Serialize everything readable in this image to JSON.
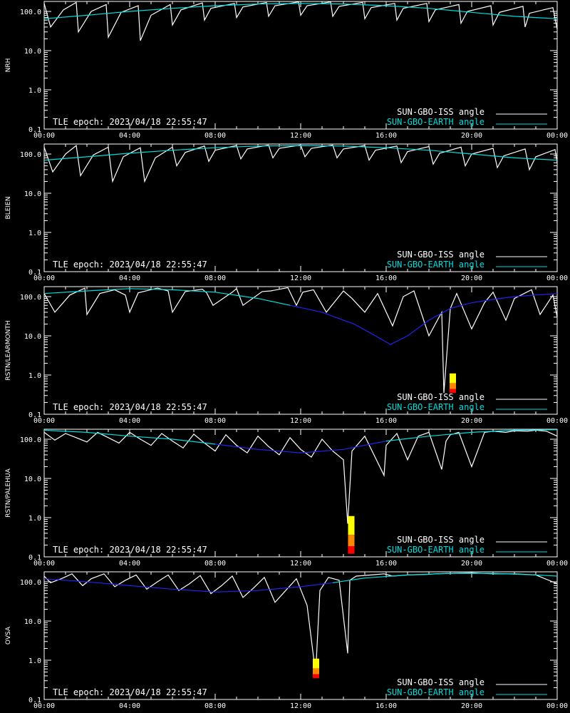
{
  "colors": {
    "background": "#000000",
    "axes": "#ffffff",
    "iss_series": "#ffffff",
    "earth_series": "#00dddd",
    "earth_low_series": "#2222ee",
    "intensity_high": "#ffff00",
    "intensity_mid": "#ff8800",
    "intensity_low": "#ff0000"
  },
  "common": {
    "epoch_text": "TLE epoch: 2023/04/18 22:55:47",
    "legend": [
      {
        "label": "SUN-GBO-ISS angle",
        "color": "#ffffff"
      },
      {
        "label": "SUN-GBO-EARTH angle",
        "color": "#00dddd"
      }
    ],
    "x_ticks": [
      "00:00",
      "04:00",
      "08:00",
      "12:00",
      "16:00",
      "20:00",
      "00:00"
    ],
    "y_ticks": [
      "0.1",
      "1.0",
      "10.0",
      "100.0"
    ]
  },
  "chart_data": [
    {
      "type": "line",
      "ylabel": "NRH",
      "yscale": "log",
      "ylim": [
        0.1,
        180
      ],
      "xlim_hours": [
        0,
        24
      ],
      "series": [
        {
          "name": "SUN-GBO-ISS angle",
          "color": "#ffffff",
          "x": [
            0.0,
            0.3,
            0.9,
            1.5,
            1.6,
            2.2,
            2.9,
            3.0,
            3.6,
            4.4,
            4.5,
            5.0,
            5.9,
            6.0,
            6.4,
            7.4,
            7.5,
            7.8,
            8.9,
            9.0,
            9.3,
            10.4,
            10.5,
            10.8,
            11.9,
            12.0,
            12.3,
            13.4,
            13.5,
            13.8,
            14.9,
            15.0,
            15.3,
            16.4,
            16.5,
            16.8,
            17.9,
            18.0,
            18.3,
            19.4,
            19.5,
            19.8,
            20.9,
            21.0,
            21.3,
            22.4,
            22.5,
            22.7,
            23.8,
            24.0
          ],
          "y": [
            160,
            40,
            110,
            170,
            30,
            100,
            150,
            22,
            95,
            140,
            18,
            80,
            150,
            45,
            110,
            165,
            60,
            120,
            160,
            70,
            130,
            170,
            75,
            140,
            175,
            80,
            140,
            175,
            75,
            135,
            170,
            65,
            125,
            160,
            60,
            120,
            160,
            55,
            110,
            150,
            50,
            100,
            140,
            45,
            95,
            135,
            40,
            90,
            125,
            35
          ]
        },
        {
          "name": "SUN-GBO-EARTH angle",
          "color": "#00dddd",
          "x": [
            0,
            2,
            4,
            6,
            8,
            10,
            12,
            14,
            16,
            18,
            20,
            22,
            24
          ],
          "y": [
            65,
            80,
            100,
            120,
            140,
            155,
            160,
            155,
            140,
            120,
            95,
            75,
            65
          ]
        }
      ]
    },
    {
      "type": "line",
      "ylabel": "BLEIEN",
      "yscale": "log",
      "ylim": [
        0.1,
        180
      ],
      "xlim_hours": [
        0,
        24
      ],
      "series": [
        {
          "name": "SUN-GBO-ISS angle",
          "color": "#ffffff",
          "x": [
            0.0,
            0.4,
            1.0,
            1.5,
            1.7,
            2.3,
            3.0,
            3.2,
            3.7,
            4.5,
            4.7,
            5.2,
            6.0,
            6.2,
            6.6,
            7.5,
            7.7,
            8.0,
            9.0,
            9.2,
            9.5,
            10.5,
            10.7,
            11.0,
            12.0,
            12.2,
            12.5,
            13.5,
            13.7,
            14.0,
            15.0,
            15.2,
            15.5,
            16.5,
            16.7,
            17.0,
            18.0,
            18.2,
            18.5,
            19.5,
            19.7,
            20.0,
            21.0,
            21.2,
            21.5,
            22.5,
            22.7,
            23.0,
            23.9,
            24.0
          ],
          "y": [
            150,
            35,
            100,
            165,
            28,
            95,
            150,
            20,
            85,
            145,
            20,
            80,
            150,
            50,
            110,
            160,
            65,
            125,
            165,
            75,
            135,
            170,
            80,
            140,
            170,
            85,
            140,
            170,
            80,
            135,
            165,
            70,
            125,
            160,
            60,
            115,
            155,
            55,
            105,
            150,
            50,
            100,
            140,
            45,
            90,
            135,
            40,
            85,
            130,
            60
          ]
        },
        {
          "name": "SUN-GBO-EARTH angle",
          "color": "#00dddd",
          "x": [
            0,
            2,
            4,
            6,
            8,
            10,
            12,
            14,
            16,
            18,
            20,
            22,
            24
          ],
          "y": [
            70,
            85,
            105,
            125,
            145,
            160,
            165,
            160,
            145,
            125,
            100,
            80,
            70
          ]
        }
      ]
    },
    {
      "type": "line",
      "ylabel": "RSTN/LEARMONTH",
      "yscale": "log",
      "ylim": [
        0.1,
        180
      ],
      "xlim_hours": [
        0,
        24
      ],
      "series": [
        {
          "name": "SUN-GBO-ISS angle",
          "color": "#ffffff",
          "x": [
            0.0,
            0.5,
            1.2,
            1.9,
            2.0,
            2.6,
            3.3,
            3.8,
            4.0,
            4.4,
            5.3,
            5.8,
            6.0,
            6.6,
            7.4,
            7.6,
            7.9,
            8.8,
            9.0,
            9.3,
            10.2,
            10.6,
            11.4,
            11.8,
            12.1,
            12.6,
            13.2,
            14.0,
            14.4,
            15.0,
            15.6,
            16.3,
            16.8,
            17.3,
            18.0,
            18.6,
            18.7,
            19.0,
            19.3,
            20.0,
            20.6,
            21.0,
            21.6,
            22.0,
            22.8,
            23.2,
            23.8,
            24.0
          ],
          "y": [
            120,
            40,
            110,
            165,
            35,
            120,
            150,
            110,
            40,
            125,
            165,
            140,
            40,
            135,
            155,
            125,
            60,
            130,
            160,
            60,
            135,
            140,
            170,
            60,
            130,
            150,
            40,
            140,
            90,
            40,
            120,
            18,
            100,
            140,
            10,
            40,
            0.35,
            50,
            120,
            15,
            70,
            130,
            25,
            90,
            150,
            35,
            110,
            30
          ]
        },
        {
          "name": "SUN-GBO-EARTH angle",
          "color": "#00dddd",
          "x": [
            0,
            2,
            4,
            6,
            8,
            10,
            11.5
          ],
          "y": [
            120,
            140,
            160,
            150,
            130,
            90,
            60
          ]
        },
        {
          "name": "SUN-GBO-EARTH angle (low)",
          "color": "#2222ee",
          "x": [
            11.5,
            13,
            14.5,
            15.5,
            16.2,
            17,
            18,
            19,
            20,
            21,
            22,
            23,
            24
          ],
          "y": [
            60,
            40,
            20,
            10,
            6,
            10,
            25,
            50,
            70,
            85,
            100,
            110,
            120
          ]
        }
      ],
      "intensity_bars": [
        {
          "x_hours": 19.1,
          "y_top": 1.1,
          "y_bottom": 0.35
        }
      ]
    },
    {
      "type": "line",
      "ylabel": "RSTN/PALEHUA",
      "yscale": "log",
      "ylim": [
        0.1,
        180
      ],
      "xlim_hours": [
        0,
        24
      ],
      "series": [
        {
          "name": "SUN-GBO-ISS angle",
          "color": "#ffffff",
          "x": [
            0.0,
            0.5,
            1.0,
            1.5,
            2.0,
            2.5,
            3.0,
            3.5,
            4.0,
            4.5,
            5.0,
            5.5,
            6.0,
            6.5,
            7.0,
            7.5,
            8.0,
            8.5,
            9.0,
            9.5,
            10.0,
            10.5,
            11.0,
            11.5,
            12.0,
            12.5,
            13.0,
            13.5,
            14.0,
            14.2,
            14.4,
            15.0,
            15.9,
            16.0,
            16.5,
            17.0,
            17.5,
            18.0,
            18.6,
            18.8,
            19.0,
            19.4,
            20.0,
            20.6,
            21.0,
            21.6,
            22.0,
            22.6,
            23.0,
            23.5,
            24.0
          ],
          "y": [
            150,
            95,
            140,
            110,
            85,
            150,
            110,
            80,
            150,
            100,
            70,
            140,
            90,
            60,
            135,
            80,
            50,
            130,
            70,
            45,
            120,
            65,
            40,
            110,
            55,
            35,
            100,
            50,
            30,
            0.7,
            50,
            120,
            12,
            70,
            140,
            30,
            120,
            150,
            17,
            90,
            130,
            150,
            20,
            150,
            160,
            150,
            165,
            160,
            170,
            160,
            120
          ]
        },
        {
          "name": "SUN-GBO-EARTH angle",
          "color": "#00dddd",
          "x": [
            0,
            2,
            4,
            6,
            8
          ],
          "y": [
            170,
            150,
            120,
            100,
            75
          ]
        },
        {
          "name": "SUN-GBO-EARTH angle (low)",
          "color": "#2222ee",
          "x": [
            8,
            10,
            12,
            14,
            16
          ],
          "y": [
            75,
            55,
            45,
            55,
            90
          ]
        },
        {
          "name": "SUN-GBO-EARTH angle (high)",
          "color": "#00dddd",
          "x": [
            16,
            18,
            20,
            22,
            24
          ],
          "y": [
            90,
            120,
            150,
            170,
            175
          ]
        }
      ],
      "intensity_bars": [
        {
          "x_hours": 14.35,
          "y_top": 1.1,
          "y_bottom": 0.12
        }
      ]
    },
    {
      "type": "line",
      "ylabel": "OVSA",
      "yscale": "log",
      "ylim": [
        0.1,
        180
      ],
      "xlim_hours": [
        0,
        24
      ],
      "series": [
        {
          "name": "SUN-GBO-ISS angle",
          "color": "#ffffff",
          "x": [
            0.0,
            0.3,
            0.8,
            1.3,
            1.8,
            2.2,
            2.8,
            3.3,
            3.8,
            4.3,
            4.8,
            5.3,
            5.8,
            6.3,
            6.8,
            7.3,
            7.8,
            8.3,
            8.8,
            9.3,
            9.8,
            10.3,
            10.8,
            11.3,
            11.8,
            12.3,
            12.7,
            12.9,
            13.3,
            13.8,
            14.2,
            14.3,
            14.6,
            15.3,
            15.9,
            16.3,
            17.0,
            17.9,
            18.3,
            19.0,
            20.0,
            21.0,
            22.0,
            23.0,
            24.0
          ],
          "y": [
            140,
            95,
            120,
            160,
            80,
            120,
            160,
            75,
            110,
            150,
            65,
            100,
            150,
            60,
            90,
            145,
            50,
            80,
            140,
            40,
            70,
            130,
            30,
            60,
            120,
            25,
            0.45,
            60,
            130,
            110,
            1.5,
            110,
            140,
            150,
            160,
            140,
            150,
            155,
            160,
            165,
            170,
            160,
            160,
            150,
            90
          ]
        },
        {
          "name": "SUN-GBO-EARTH angle (low)",
          "color": "#2222ee",
          "x": [
            0,
            2,
            4,
            6,
            8,
            10,
            12,
            13.5
          ],
          "y": [
            120,
            100,
            80,
            65,
            55,
            60,
            75,
            95
          ]
        },
        {
          "name": "SUN-GBO-EARTH angle",
          "color": "#00dddd",
          "x": [
            13.5,
            15,
            17,
            19,
            21,
            23,
            24
          ],
          "y": [
            95,
            125,
            150,
            165,
            165,
            150,
            140
          ]
        }
      ],
      "intensity_bars": [
        {
          "x_hours": 12.7,
          "y_top": 1.1,
          "y_bottom": 0.35
        }
      ]
    }
  ]
}
